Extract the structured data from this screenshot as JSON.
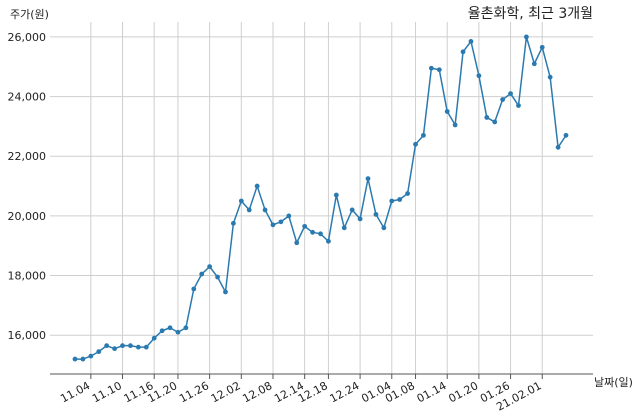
{
  "chart_data": {
    "type": "line",
    "title": "율촌화학, 최근 3개월",
    "ylabel": "주가(원)",
    "xlabel": "날짜(일)",
    "ylim": [
      14700,
      26500
    ],
    "yticks": [
      16000,
      18000,
      20000,
      22000,
      24000,
      26000
    ],
    "ytick_labels": [
      "16,000",
      "18,000",
      "20,000",
      "22,000",
      "24,000",
      "26,000"
    ],
    "xtick_labels": [
      "11.04",
      "11.10",
      "11.16",
      "11.20",
      "11.26",
      "12.02",
      "12.08",
      "12.14",
      "12.18",
      "12.24",
      "01.04",
      "01.08",
      "01.14",
      "01.20",
      "01.26",
      "21.02.01"
    ],
    "xtick_index": [
      2,
      6,
      10,
      13,
      17,
      21,
      25,
      29,
      32,
      36,
      40,
      43,
      47,
      51,
      55,
      59
    ],
    "grid": true,
    "color": "#2a7ab0",
    "series": [
      {
        "values": [
          15200,
          15200,
          15300,
          15450,
          15650,
          15550,
          15650,
          15650,
          15600,
          15600,
          15900,
          16150,
          16250,
          16100,
          16250,
          17550,
          18050,
          18300,
          17950,
          17450,
          19750,
          20500,
          20200,
          21000,
          20200,
          19700,
          19800,
          20000,
          19100,
          19650,
          19450,
          19400,
          19150,
          20700,
          19600,
          20200,
          19900,
          21250,
          20050,
          19600,
          20500,
          20550,
          20750,
          22400,
          22700,
          24950,
          24900,
          23500,
          23050,
          25500,
          25850,
          24700,
          23300,
          23150,
          23900,
          24100,
          23700,
          26000,
          25100,
          25650,
          24650,
          22300,
          22700
        ]
      }
    ]
  }
}
